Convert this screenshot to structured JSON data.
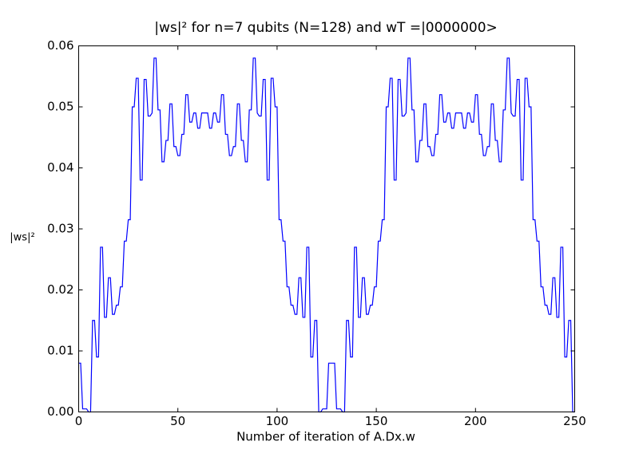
{
  "chart_data": {
    "type": "line",
    "title": "|ws|²  for n=7 qubits (N=128) and wT =|0000000>",
    "x_label": "Number of iteration of A.Dx.w",
    "y_label": "|ws|²",
    "x": [
      0,
      1,
      2,
      3,
      4,
      5,
      6,
      7,
      8,
      9,
      10,
      11,
      12,
      13,
      14,
      15,
      16,
      17,
      18,
      19,
      20,
      21,
      22,
      23,
      24,
      25,
      26,
      27,
      28,
      29,
      30,
      31,
      32,
      33,
      34,
      35,
      36,
      37,
      38,
      39,
      40,
      41,
      42,
      43,
      44,
      45,
      46,
      47,
      48,
      49,
      50,
      51,
      52,
      53,
      54,
      55,
      56,
      57,
      58,
      59,
      60,
      61,
      62,
      63,
      64,
      65,
      66,
      67,
      68,
      69,
      70,
      71,
      72,
      73,
      74,
      75,
      76,
      77,
      78,
      79,
      80,
      81,
      82,
      83,
      84,
      85,
      86,
      87,
      88,
      89,
      90,
      91,
      92,
      93,
      94,
      95,
      96,
      97,
      98,
      99,
      100,
      101,
      102,
      103,
      104,
      105,
      106,
      107,
      108,
      109,
      110,
      111,
      112,
      113,
      114,
      115,
      116,
      117,
      118,
      119,
      120,
      121,
      122,
      123,
      124,
      125,
      126,
      127,
      128,
      129,
      130,
      131,
      132,
      133,
      134,
      135,
      136,
      137,
      138,
      139,
      140,
      141,
      142,
      143,
      144,
      145,
      146,
      147,
      148,
      149,
      150,
      151,
      152,
      153,
      154,
      155,
      156,
      157,
      158,
      159,
      160,
      161,
      162,
      163,
      164,
      165,
      166,
      167,
      168,
      169,
      170,
      171,
      172,
      173,
      174,
      175,
      176,
      177,
      178,
      179,
      180,
      181,
      182,
      183,
      184,
      185,
      186,
      187,
      188,
      189,
      190,
      191,
      192,
      193,
      194,
      195,
      196,
      197,
      198,
      199,
      200,
      201,
      202,
      203,
      204,
      205,
      206,
      207,
      208,
      209,
      210,
      211,
      212,
      213,
      214,
      215,
      216,
      217,
      218,
      219,
      220,
      221,
      222,
      223,
      224,
      225,
      226,
      227,
      228,
      229,
      230,
      231,
      232,
      233,
      234,
      235,
      236,
      237,
      238,
      239,
      240,
      241,
      242,
      243,
      244,
      245,
      246,
      247,
      248,
      249,
      250
    ],
    "series": [
      {
        "name": "|ws|²",
        "color": "#0000ff",
        "values": [
          0.008,
          0.008,
          0.0005,
          0.0005,
          0.0005,
          0,
          0,
          0.015,
          0.015,
          0.009,
          0.009,
          0.027,
          0.027,
          0.0155,
          0.0155,
          0.022,
          0.022,
          0.016,
          0.016,
          0.0175,
          0.0175,
          0.0205,
          0.0205,
          0.028,
          0.028,
          0.0315,
          0.0315,
          0.05,
          0.05,
          0.0547,
          0.0547,
          0.038,
          0.038,
          0.0545,
          0.0545,
          0.0485,
          0.0485,
          0.049,
          0.058,
          0.058,
          0.0495,
          0.0495,
          0.041,
          0.041,
          0.0445,
          0.0445,
          0.0505,
          0.0505,
          0.0435,
          0.0435,
          0.042,
          0.042,
          0.0455,
          0.0455,
          0.052,
          0.052,
          0.0475,
          0.0475,
          0.049,
          0.049,
          0.0465,
          0.0465,
          0.049,
          0.049,
          0.049,
          0.049,
          0.0465,
          0.0465,
          0.049,
          0.049,
          0.0475,
          0.0475,
          0.052,
          0.052,
          0.0455,
          0.0455,
          0.042,
          0.042,
          0.0435,
          0.0435,
          0.0505,
          0.0505,
          0.0445,
          0.0445,
          0.041,
          0.041,
          0.0495,
          0.0495,
          0.058,
          0.058,
          0.049,
          0.0485,
          0.0485,
          0.0545,
          0.0545,
          0.038,
          0.038,
          0.0547,
          0.0547,
          0.05,
          0.05,
          0.0315,
          0.0315,
          0.028,
          0.028,
          0.0205,
          0.0205,
          0.0175,
          0.0175,
          0.016,
          0.016,
          0.022,
          0.022,
          0.0155,
          0.0155,
          0.027,
          0.027,
          0.009,
          0.009,
          0.015,
          0.015,
          0,
          0,
          0.0005,
          0.0005,
          0.0005,
          0.008,
          0.008,
          0.008,
          0.008,
          0.0005,
          0.0005,
          0.0005,
          0,
          0,
          0.015,
          0.015,
          0.009,
          0.009,
          0.027,
          0.027,
          0.0155,
          0.0155,
          0.022,
          0.022,
          0.016,
          0.016,
          0.0175,
          0.0175,
          0.0205,
          0.0205,
          0.028,
          0.028,
          0.0315,
          0.0315,
          0.05,
          0.05,
          0.0547,
          0.0547,
          0.038,
          0.038,
          0.0545,
          0.0545,
          0.0485,
          0.0485,
          0.049,
          0.058,
          0.058,
          0.0495,
          0.0495,
          0.041,
          0.041,
          0.0445,
          0.0445,
          0.0505,
          0.0505,
          0.0435,
          0.0435,
          0.042,
          0.042,
          0.0455,
          0.0455,
          0.052,
          0.052,
          0.0475,
          0.0475,
          0.049,
          0.049,
          0.0465,
          0.0465,
          0.049,
          0.049,
          0.049,
          0.049,
          0.0465,
          0.0465,
          0.049,
          0.049,
          0.0475,
          0.0475,
          0.052,
          0.052,
          0.0455,
          0.0455,
          0.042,
          0.042,
          0.0435,
          0.0435,
          0.0505,
          0.0505,
          0.0445,
          0.0445,
          0.041,
          0.041,
          0.0495,
          0.0495,
          0.058,
          0.058,
          0.049,
          0.0485,
          0.0485,
          0.0545,
          0.0545,
          0.038,
          0.038,
          0.0547,
          0.0547,
          0.05,
          0.05,
          0.0315,
          0.0315,
          0.028,
          0.028,
          0.0205,
          0.0205,
          0.0175,
          0.0175,
          0.016,
          0.016,
          0.022,
          0.022,
          0.0155,
          0.0155,
          0.027,
          0.027,
          0.009,
          0.009,
          0.015,
          0.015,
          0,
          0
        ]
      }
    ],
    "xlim": [
      0,
      250
    ],
    "xticks": [
      0,
      50,
      100,
      150,
      200,
      250
    ],
    "ylim": [
      0,
      0.06
    ],
    "yticks": [
      {
        "value": 0,
        "label": "0.00"
      },
      0.01,
      0.02,
      0.03,
      0.04,
      0.05,
      0.06
    ],
    "grid": false
  }
}
